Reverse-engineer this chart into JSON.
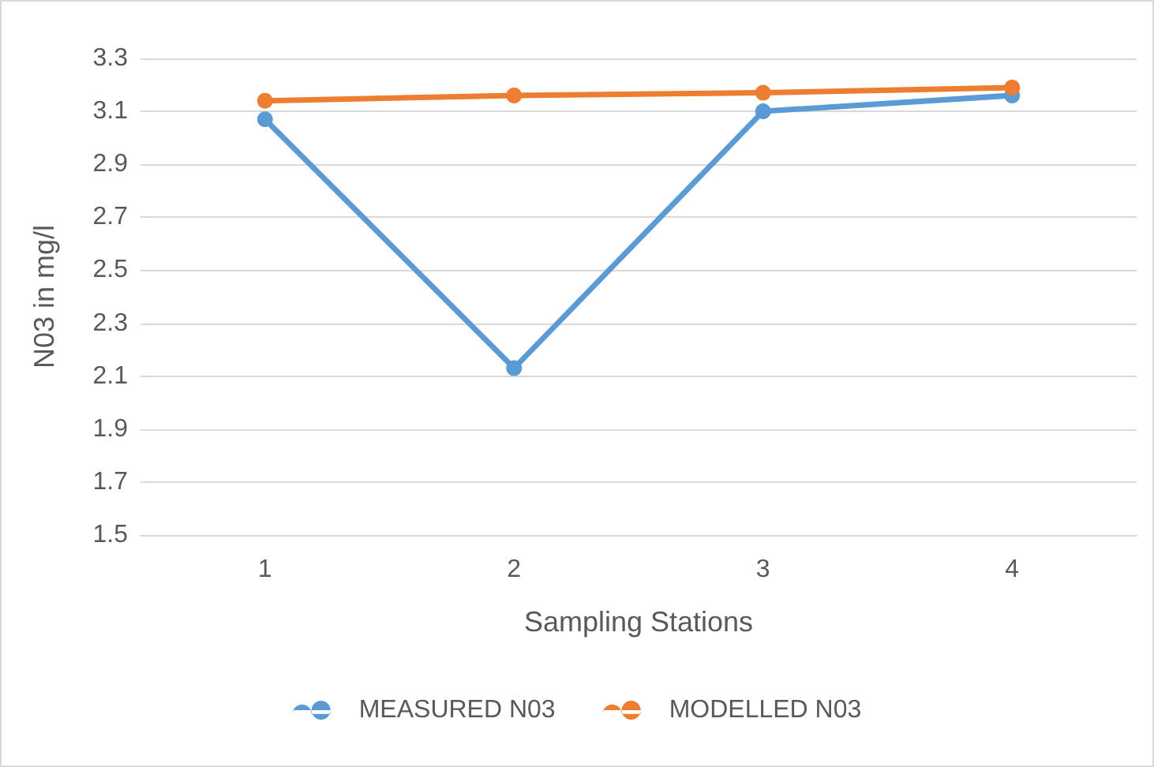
{
  "chart_data": {
    "type": "line",
    "xlabel": "Sampling Stations",
    "ylabel": "N03 in mg/l",
    "categories": [
      "1",
      "2",
      "3",
      "4"
    ],
    "series": [
      {
        "name": "MEASURED N03",
        "color": "#5b9bd5",
        "values": [
          3.07,
          2.13,
          3.1,
          3.16
        ]
      },
      {
        "name": "MODELLED N03",
        "color": "#ed7d31",
        "values": [
          3.14,
          3.16,
          3.17,
          3.19
        ]
      }
    ],
    "ylim": [
      1.5,
      3.3
    ],
    "yticks": [
      {
        "value": 1.5,
        "label": "1.5"
      },
      {
        "value": 1.7,
        "label": "1.7"
      },
      {
        "value": 1.9,
        "label": "1.9"
      },
      {
        "value": 2.1,
        "label": "2.1"
      },
      {
        "value": 2.3,
        "label": "2.3"
      },
      {
        "value": 2.5,
        "label": "2.5"
      },
      {
        "value": 2.7,
        "label": "2.7"
      },
      {
        "value": 2.9,
        "label": "2.9"
      },
      {
        "value": 3.1,
        "label": "3.1"
      },
      {
        "value": 3.3,
        "label": "3.3"
      }
    ],
    "grid": "y",
    "legend": "bottom",
    "marker": "circle",
    "line_style": "solid"
  }
}
